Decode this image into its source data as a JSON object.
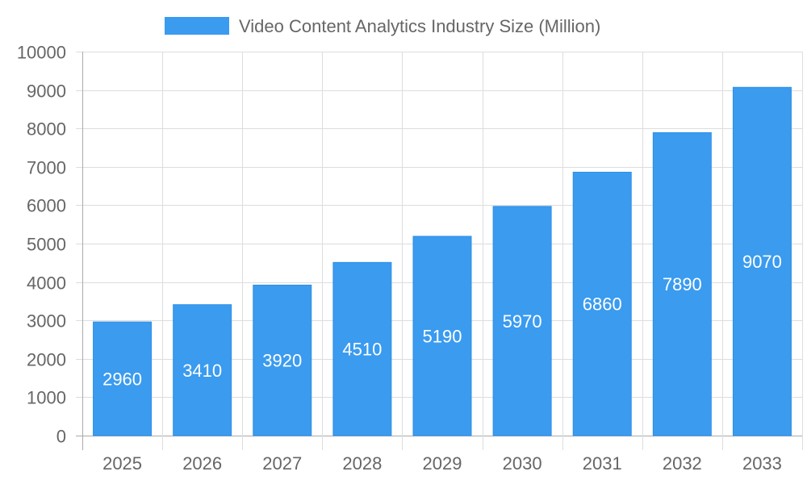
{
  "chart_data": {
    "type": "bar",
    "title": "",
    "xlabel": "",
    "ylabel": "",
    "categories": [
      "2025",
      "2026",
      "2027",
      "2028",
      "2029",
      "2030",
      "2031",
      "2032",
      "2033"
    ],
    "series": [
      {
        "name": "Video Content Analytics Industry Size (Million)",
        "values": [
          2960,
          3410,
          3920,
          4510,
          5190,
          5970,
          6860,
          7890,
          9070
        ],
        "color": "#3a9bef"
      }
    ],
    "ylim": [
      0,
      10000
    ],
    "yticks": [
      0,
      1000,
      2000,
      3000,
      4000,
      5000,
      6000,
      7000,
      8000,
      9000,
      10000
    ],
    "grid": true,
    "legend_position": "top",
    "data_labels": true
  }
}
